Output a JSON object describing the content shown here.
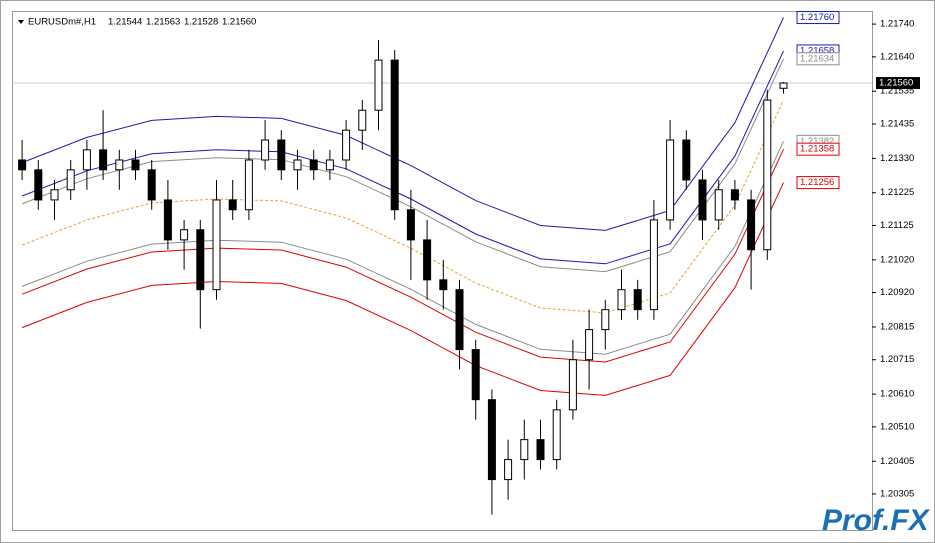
{
  "chart_data": {
    "type": "candlestick",
    "title": "EURUSDm#,H1",
    "header_prices": [
      "1.21544",
      "1.21563",
      "1.21528",
      "1.21560"
    ],
    "watermark": "Prof.FX",
    "up_color": "#ffffff",
    "down_color": "#000000",
    "ylim": [
      1.20195,
      1.2178
    ],
    "yticks": [
      {
        "value": 1.2174,
        "label": "1.21740"
      },
      {
        "value": 1.2164,
        "label": "1.21640"
      },
      1.21535,
      1.21435,
      {
        "value": 1.2133,
        "label": "1.21330"
      },
      1.21225,
      1.21125,
      {
        "value": 1.2102,
        "label": "1.21020"
      },
      {
        "value": 1.2092,
        "label": "1.20920"
      },
      1.20815,
      1.20715,
      {
        "value": 1.2061,
        "label": "1.20610"
      },
      {
        "value": 1.2051,
        "label": "1.20510"
      },
      1.20405,
      1.20305
    ],
    "current_price": {
      "value": 1.2156,
      "label": "1.21560"
    },
    "open": [
      1.21325,
      1.21295,
      1.21203,
      1.21234,
      1.21295,
      1.21356,
      1.21295,
      1.21325,
      1.21295,
      1.21203,
      1.21081,
      1.21112,
      1.20929,
      1.21203,
      1.21173,
      1.21325,
      1.21386,
      1.21295,
      1.21325,
      1.21295,
      1.21325,
      1.21416,
      1.21477,
      1.2163,
      1.21173,
      1.21081,
      1.20959,
      1.20929,
      1.20746,
      1.20593,
      1.20349,
      1.2041,
      1.20471,
      1.2041,
      1.20562,
      1.20715,
      1.20807,
      1.20868,
      1.20929,
      1.20868,
      1.21142,
      1.21386,
      1.21264,
      1.21142,
      1.21234,
      1.21203,
      1.21051,
      1.21544
    ],
    "high": [
      1.21386,
      1.21325,
      1.21264,
      1.21325,
      1.21386,
      1.21477,
      1.21356,
      1.21356,
      1.21325,
      1.21264,
      1.21142,
      1.21142,
      1.21264,
      1.21264,
      1.21356,
      1.21447,
      1.21416,
      1.21356,
      1.21356,
      1.21356,
      1.21447,
      1.21508,
      1.21691,
      1.21661,
      1.21234,
      1.21142,
      1.2102,
      1.20959,
      1.20776,
      1.20624,
      1.20471,
      1.20532,
      1.20532,
      1.20593,
      1.20776,
      1.20868,
      1.20898,
      1.2099,
      1.20959,
      1.21203,
      1.21447,
      1.21416,
      1.21295,
      1.21264,
      1.21264,
      1.21234,
      1.21539,
      1.21563
    ],
    "low": [
      1.21264,
      1.21173,
      1.21142,
      1.21203,
      1.21234,
      1.21264,
      1.21234,
      1.21264,
      1.21173,
      1.21051,
      1.2099,
      1.2081,
      1.20898,
      1.21142,
      1.21142,
      1.21295,
      1.21264,
      1.21234,
      1.21264,
      1.21264,
      1.21295,
      1.21356,
      1.21416,
      1.21142,
      1.20959,
      1.20898,
      1.20868,
      1.20685,
      1.20532,
      1.20242,
      1.20288,
      1.20349,
      1.2038,
      1.2038,
      1.20532,
      1.20624,
      1.20746,
      1.20837,
      1.20837,
      1.20837,
      1.21112,
      1.21234,
      1.21081,
      1.21112,
      1.21173,
      1.20929,
      1.2102,
      1.21528
    ],
    "close": [
      1.21295,
      1.21203,
      1.21234,
      1.21295,
      1.21356,
      1.21295,
      1.21325,
      1.21295,
      1.21203,
      1.21081,
      1.21112,
      1.20929,
      1.21203,
      1.21173,
      1.21325,
      1.21386,
      1.21295,
      1.21325,
      1.21295,
      1.21325,
      1.21416,
      1.21477,
      1.2163,
      1.21173,
      1.21081,
      1.20959,
      1.20929,
      1.20746,
      1.20593,
      1.20349,
      1.2041,
      1.20471,
      1.2041,
      1.20562,
      1.20715,
      1.20807,
      1.20868,
      1.20929,
      1.20868,
      1.21142,
      1.21386,
      1.21264,
      1.21142,
      1.21234,
      1.21203,
      1.21051,
      1.21508,
      1.2156
    ],
    "band_x": [
      0,
      4,
      8,
      12,
      16,
      20,
      24,
      28,
      32,
      36,
      40,
      44,
      47
    ],
    "bands": [
      {
        "color": "#1b1bb3",
        "end_label": "1.21760",
        "values": [
          1.21317,
          1.21394,
          1.21446,
          1.21458,
          1.21452,
          1.214,
          1.21308,
          1.21201,
          1.21125,
          1.2111,
          1.21171,
          1.21439,
          1.2176
        ]
      },
      {
        "color": "#1b1bb3",
        "end_label": "1.21658",
        "values": [
          1.21215,
          1.21292,
          1.21344,
          1.21356,
          1.2135,
          1.21298,
          1.21206,
          1.21099,
          1.21023,
          1.21008,
          1.21069,
          1.21337,
          1.21658
        ]
      },
      {
        "color": "#8c8c8c",
        "end_label": "1.21634",
        "values": [
          1.21191,
          1.21268,
          1.2132,
          1.21332,
          1.21326,
          1.21274,
          1.21182,
          1.21075,
          1.20999,
          1.20984,
          1.21045,
          1.21313,
          1.21634
        ]
      },
      {
        "color": "#f0a030",
        "dashed": true,
        "values": [
          1.21065,
          1.21142,
          1.21194,
          1.21206,
          1.212,
          1.21148,
          1.21056,
          1.20949,
          1.20873,
          1.20858,
          1.20919,
          1.21187,
          1.21508
        ]
      },
      {
        "color": "#8c8c8c",
        "end_label": "1.21382",
        "values": [
          1.20939,
          1.21016,
          1.21068,
          1.2108,
          1.21074,
          1.21022,
          1.2093,
          1.20823,
          1.20747,
          1.20732,
          1.20793,
          1.21061,
          1.21382
        ]
      },
      {
        "color": "#e00000",
        "end_label": "1.21358",
        "values": [
          1.20915,
          1.20992,
          1.21044,
          1.21056,
          1.2105,
          1.20998,
          1.20906,
          1.20799,
          1.20723,
          1.20708,
          1.20769,
          1.21037,
          1.21358
        ]
      },
      {
        "color": "#e00000",
        "end_label": "1.21256",
        "values": [
          1.20813,
          1.2089,
          1.20942,
          1.20954,
          1.20948,
          1.20896,
          1.20804,
          1.20697,
          1.20621,
          1.20606,
          1.20667,
          1.20935,
          1.21256
        ]
      }
    ]
  }
}
